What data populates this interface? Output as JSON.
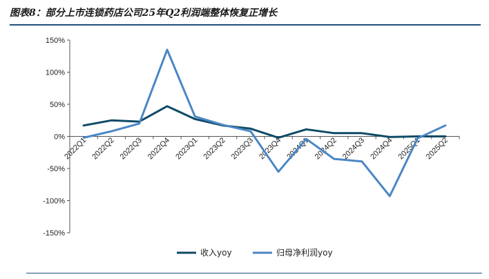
{
  "chart_data": {
    "type": "line",
    "title": "图表8：部分上市连锁药店公司25年Q2利润端整体恢复正增长",
    "xlabel": "",
    "ylabel": "",
    "categories": [
      "2022Q1",
      "2022Q2",
      "2022Q3",
      "2022Q4",
      "2023Q1",
      "2023Q2",
      "2023Q3",
      "2023Q4",
      "2024Q1",
      "2024Q2",
      "2024Q3",
      "2024Q4",
      "2025Q1",
      "2025Q2"
    ],
    "ylim": [
      -150,
      150
    ],
    "yticks": [
      150,
      100,
      50,
      0,
      -50,
      -100,
      -150
    ],
    "ytick_labels": [
      "150%",
      "100%",
      "50%",
      "0%",
      "-50%",
      "-100%",
      "-150%"
    ],
    "grid": false,
    "legend_position": "bottom",
    "series": [
      {
        "name": "收入yoy",
        "color": "#0e4a66",
        "values": [
          17,
          25,
          23,
          47,
          27,
          17,
          12,
          -2,
          11,
          5,
          5,
          -1,
          0,
          0
        ]
      },
      {
        "name": "归母净利润yoy",
        "color": "#4a86c5",
        "values": [
          -2,
          8,
          20,
          135,
          31,
          18,
          8,
          -55,
          -4,
          -35,
          -39,
          -93,
          -3,
          17
        ]
      }
    ]
  }
}
